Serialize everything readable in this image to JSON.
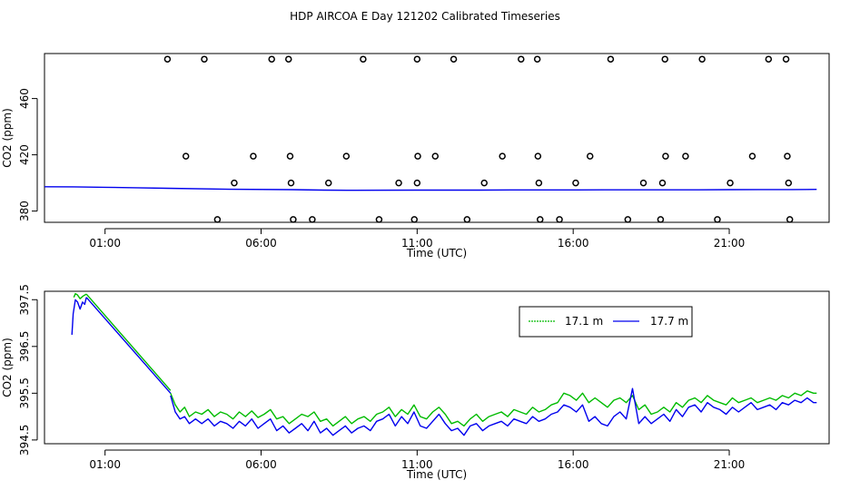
{
  "chart_data": [
    {
      "type": "scatter",
      "title": "HDP AIRCOA E  Day 121202  Calibrated Timeseries",
      "xlabel": "Time (UTC)",
      "ylabel": "CO2 (ppm)",
      "xticks": [
        "01:00",
        "06:00",
        "11:00",
        "16:00",
        "21:00"
      ],
      "xtick_hours": [
        1,
        6,
        11,
        16,
        21
      ],
      "xlim_hours": [
        -0.94,
        24.2
      ],
      "yticks": [
        380,
        420,
        460
      ],
      "ylim": [
        372,
        492
      ],
      "points": [
        {
          "x": 3.0,
          "y": 488
        },
        {
          "x": 4.18,
          "y": 488
        },
        {
          "x": 6.34,
          "y": 488
        },
        {
          "x": 6.88,
          "y": 488
        },
        {
          "x": 9.27,
          "y": 488
        },
        {
          "x": 11.0,
          "y": 488
        },
        {
          "x": 12.17,
          "y": 488
        },
        {
          "x": 14.33,
          "y": 488
        },
        {
          "x": 14.85,
          "y": 488
        },
        {
          "x": 17.2,
          "y": 488
        },
        {
          "x": 18.94,
          "y": 488
        },
        {
          "x": 20.13,
          "y": 488
        },
        {
          "x": 22.26,
          "y": 488
        },
        {
          "x": 22.82,
          "y": 488
        },
        {
          "x": 3.59,
          "y": 419
        },
        {
          "x": 5.75,
          "y": 419
        },
        {
          "x": 6.93,
          "y": 419
        },
        {
          "x": 8.73,
          "y": 419
        },
        {
          "x": 11.02,
          "y": 419
        },
        {
          "x": 11.58,
          "y": 419
        },
        {
          "x": 13.73,
          "y": 419
        },
        {
          "x": 14.87,
          "y": 419
        },
        {
          "x": 16.54,
          "y": 419
        },
        {
          "x": 18.96,
          "y": 419
        },
        {
          "x": 19.6,
          "y": 419
        },
        {
          "x": 21.74,
          "y": 419
        },
        {
          "x": 22.86,
          "y": 419
        },
        {
          "x": 5.14,
          "y": 400
        },
        {
          "x": 6.96,
          "y": 400
        },
        {
          "x": 8.16,
          "y": 400
        },
        {
          "x": 10.41,
          "y": 400
        },
        {
          "x": 11.0,
          "y": 400
        },
        {
          "x": 13.15,
          "y": 400
        },
        {
          "x": 14.9,
          "y": 400
        },
        {
          "x": 16.08,
          "y": 400
        },
        {
          "x": 18.25,
          "y": 400
        },
        {
          "x": 18.86,
          "y": 400
        },
        {
          "x": 21.03,
          "y": 400
        },
        {
          "x": 22.9,
          "y": 400
        },
        {
          "x": 4.6,
          "y": 374
        },
        {
          "x": 7.03,
          "y": 374
        },
        {
          "x": 7.64,
          "y": 374
        },
        {
          "x": 9.78,
          "y": 374
        },
        {
          "x": 10.91,
          "y": 374
        },
        {
          "x": 12.6,
          "y": 374
        },
        {
          "x": 14.94,
          "y": 374
        },
        {
          "x": 15.56,
          "y": 374
        },
        {
          "x": 17.75,
          "y": 374
        },
        {
          "x": 18.8,
          "y": 374
        },
        {
          "x": 20.62,
          "y": 374
        },
        {
          "x": 22.94,
          "y": 374
        }
      ],
      "series": [
        {
          "color": "#0000ee",
          "x": [
            -0.94,
            0,
            1,
            2,
            3,
            5,
            7,
            8,
            9,
            11,
            13,
            14,
            16,
            17,
            20,
            21,
            22,
            23,
            23.8
          ],
          "y": [
            397.3,
            397.2,
            396.9,
            396.6,
            396.2,
            395.5,
            395.2,
            394.9,
            394.8,
            394.9,
            394.9,
            395.0,
            395.0,
            395.1,
            395.1,
            395.2,
            395.3,
            395.3,
            395.4
          ]
        }
      ]
    },
    {
      "type": "line",
      "xlabel": "Time (UTC)",
      "ylabel": "CO2 (ppm)",
      "xticks": [
        "01:00",
        "06:00",
        "11:00",
        "16:00",
        "21:00"
      ],
      "xtick_hours": [
        1,
        6,
        11,
        16,
        21
      ],
      "xlim_hours": [
        -0.94,
        24.2
      ],
      "yticks": [
        394.5,
        395.5,
        396.5,
        397.5
      ],
      "ylim": [
        394.42,
        397.68
      ],
      "legend_position": "top-right",
      "series": [
        {
          "name": "17.1 m",
          "color": "#00bb00",
          "segments": [
            {
              "x": [
                0,
                0.05,
                0.12,
                0.2,
                0.3,
                0.4
              ],
              "y": [
                397.55,
                397.63,
                397.6,
                397.52,
                397.58,
                397.62
              ]
            },
            {
              "x": [
                0.4,
                3.1
              ],
              "y": [
                397.62,
                395.56
              ]
            },
            {
              "x": [
                3.1,
                3.25,
                3.4,
                3.55,
                3.7,
                3.9,
                4.1,
                4.3,
                4.5,
                4.7,
                4.9,
                5.1,
                5.3,
                5.5,
                5.7,
                5.9,
                6.1,
                6.3,
                6.5,
                6.7,
                6.9,
                7.1,
                7.3,
                7.5,
                7.7,
                7.9,
                8.1,
                8.3,
                8.5,
                8.7,
                8.9,
                9.1,
                9.3,
                9.5,
                9.7,
                9.9,
                10.1,
                10.3,
                10.5,
                10.7,
                10.9,
                11.1,
                11.3,
                11.5,
                11.7,
                11.9,
                12.1,
                12.3,
                12.5,
                12.7,
                12.9,
                13.1,
                13.3,
                13.5,
                13.7,
                13.9,
                14.1,
                14.3,
                14.5,
                14.7,
                14.9,
                15.1,
                15.3,
                15.5,
                15.7,
                15.9,
                16.1,
                16.3,
                16.5,
                16.7,
                16.9,
                17.1,
                17.3,
                17.5,
                17.7,
                17.9,
                18.1,
                18.3,
                18.5,
                18.7,
                18.9,
                19.1,
                19.3,
                19.5,
                19.7,
                19.9,
                20.1,
                20.3,
                20.5,
                20.7,
                20.9,
                21.1,
                21.3,
                21.5,
                21.7,
                21.9,
                22.1,
                22.3,
                22.5,
                22.7,
                22.9,
                23.1,
                23.3,
                23.5,
                23.7,
                23.8
              ],
              "y": [
                395.5,
                395.25,
                395.1,
                395.2,
                395.0,
                395.1,
                395.05,
                395.15,
                395.0,
                395.1,
                395.05,
                394.95,
                395.1,
                395.0,
                395.12,
                394.98,
                395.05,
                395.15,
                394.95,
                395.0,
                394.85,
                394.95,
                395.05,
                395.0,
                395.1,
                394.9,
                394.95,
                394.8,
                394.9,
                395.0,
                394.85,
                394.95,
                395.0,
                394.9,
                395.05,
                395.1,
                395.2,
                395.0,
                395.15,
                395.05,
                395.25,
                395.0,
                394.95,
                395.1,
                395.2,
                395.05,
                394.85,
                394.9,
                394.8,
                394.95,
                395.05,
                394.9,
                395.0,
                395.05,
                395.1,
                395.0,
                395.15,
                395.1,
                395.05,
                395.2,
                395.1,
                395.15,
                395.25,
                395.3,
                395.5,
                395.45,
                395.35,
                395.5,
                395.3,
                395.4,
                395.3,
                395.2,
                395.35,
                395.4,
                395.3,
                395.45,
                395.15,
                395.25,
                395.05,
                395.1,
                395.2,
                395.1,
                395.3,
                395.2,
                395.35,
                395.4,
                395.3,
                395.45,
                395.35,
                395.3,
                395.25,
                395.4,
                395.3,
                395.35,
                395.4,
                395.3,
                395.35,
                395.4,
                395.35,
                395.45,
                395.4,
                395.5,
                395.45,
                395.55,
                395.5,
                395.5
              ]
            }
          ]
        },
        {
          "name": "17.7 m",
          "color": "#0000ee",
          "segments": [
            {
              "x": [
                -0.06,
                -0.02,
                0.05,
                0.12,
                0.2,
                0.28,
                0.35,
                0.4
              ],
              "y": [
                396.75,
                397.2,
                397.5,
                397.45,
                397.3,
                397.45,
                397.4,
                397.55
              ]
            },
            {
              "x": [
                0.4,
                3.1
              ],
              "y": [
                397.55,
                395.5
              ]
            },
            {
              "x": [
                3.1,
                3.25,
                3.4,
                3.55,
                3.7,
                3.9,
                4.1,
                4.3,
                4.5,
                4.7,
                4.9,
                5.1,
                5.3,
                5.5,
                5.7,
                5.9,
                6.1,
                6.3,
                6.5,
                6.7,
                6.9,
                7.1,
                7.3,
                7.5,
                7.7,
                7.9,
                8.1,
                8.3,
                8.5,
                8.7,
                8.9,
                9.1,
                9.3,
                9.5,
                9.7,
                9.9,
                10.1,
                10.3,
                10.5,
                10.7,
                10.9,
                11.1,
                11.3,
                11.5,
                11.7,
                11.9,
                12.1,
                12.3,
                12.5,
                12.7,
                12.9,
                13.1,
                13.3,
                13.5,
                13.7,
                13.9,
                14.1,
                14.3,
                14.5,
                14.7,
                14.9,
                15.1,
                15.3,
                15.5,
                15.7,
                15.9,
                16.1,
                16.3,
                16.5,
                16.7,
                16.9,
                17.1,
                17.3,
                17.5,
                17.7,
                17.9,
                18.1,
                18.3,
                18.5,
                18.7,
                18.9,
                19.1,
                19.3,
                19.5,
                19.7,
                19.9,
                20.1,
                20.3,
                20.5,
                20.7,
                20.9,
                21.1,
                21.3,
                21.5,
                21.7,
                21.9,
                22.1,
                22.3,
                22.5,
                22.7,
                22.9,
                23.1,
                23.3,
                23.5,
                23.7,
                23.8
              ],
              "y": [
                395.45,
                395.1,
                394.95,
                395.0,
                394.85,
                394.95,
                394.85,
                394.95,
                394.8,
                394.9,
                394.85,
                394.75,
                394.9,
                394.8,
                394.95,
                394.75,
                394.85,
                394.95,
                394.7,
                394.8,
                394.65,
                394.75,
                394.85,
                394.7,
                394.9,
                394.65,
                394.75,
                394.6,
                394.7,
                394.8,
                394.65,
                394.75,
                394.8,
                394.7,
                394.9,
                394.95,
                395.05,
                394.8,
                395.0,
                394.85,
                395.1,
                394.8,
                394.75,
                394.9,
                395.05,
                394.85,
                394.7,
                394.75,
                394.6,
                394.8,
                394.85,
                394.7,
                394.8,
                394.85,
                394.9,
                394.8,
                394.95,
                394.9,
                394.85,
                395.0,
                394.9,
                394.95,
                395.05,
                395.1,
                395.25,
                395.2,
                395.1,
                395.25,
                394.9,
                395.0,
                394.85,
                394.8,
                395.0,
                395.1,
                394.95,
                395.6,
                394.85,
                395.0,
                394.85,
                394.95,
                395.05,
                394.9,
                395.15,
                395.0,
                395.2,
                395.25,
                395.1,
                395.3,
                395.2,
                395.15,
                395.05,
                395.2,
                395.1,
                395.2,
                395.3,
                395.15,
                395.2,
                395.25,
                395.15,
                395.3,
                395.25,
                395.35,
                395.3,
                395.4,
                395.3,
                395.3
              ]
            }
          ]
        }
      ]
    }
  ]
}
